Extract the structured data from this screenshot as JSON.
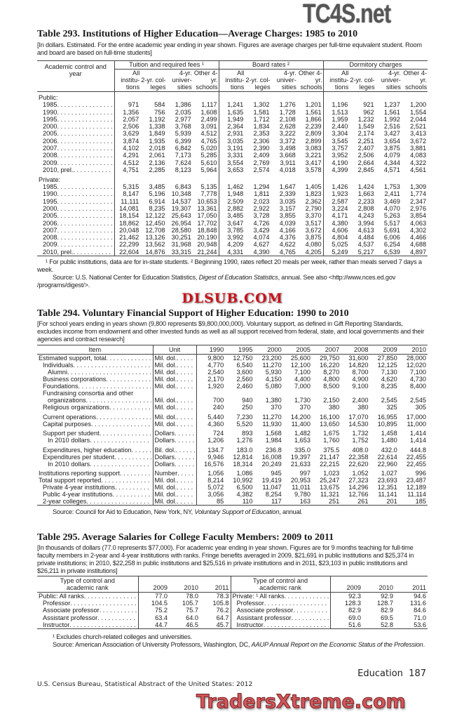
{
  "watermarks": {
    "top": "TC4S.net",
    "middle": "DLSUB.COM",
    "bottom": "TradersXtreme.com"
  },
  "t293": {
    "title": "Table 293. Institutions of Higher Education—Average Charges: 1985 to 2010",
    "headnote": "[In dollars. Estimated. For the entire academic year ending in year shown. Figures are average charges per full-time equivalent student. Room and board are based on full-time students]",
    "stub_header": "Academic control and year",
    "groups": [
      "Tuition and required fees ¹",
      "Board rates ²",
      "Dormitory charges"
    ],
    "cols": [
      "All institu- tions",
      "2-yr. col- leges",
      "4-yr. univer- sities",
      "Other 4-yr. schools"
    ],
    "sections": [
      {
        "label": "Public:",
        "rows": [
          {
            "year": "1985",
            "v": [
              "971",
              "584",
              "1,386",
              "1,117",
              "1,241",
              "1,302",
              "1,276",
              "1,201",
              "1,196",
              "921",
              "1,237",
              "1,200"
            ]
          },
          {
            "year": "1990",
            "v": [
              "1,356",
              "756",
              "2,035",
              "1,608",
              "1,635",
              "1,581",
              "1,728",
              "1,561",
              "1,513",
              "962",
              "1,561",
              "1,554"
            ]
          },
          {
            "year": "1995",
            "v": [
              "2,057",
              "1,192",
              "2,977",
              "2,499",
              "1,949",
              "1,712",
              "2,108",
              "1,866",
              "1,959",
              "1,232",
              "1,992",
              "2,044"
            ]
          },
          {
            "year": "2000",
            "v": [
              "2,506",
              "1,338",
              "3,768",
              "3,091",
              "2,364",
              "1,834",
              "2,628",
              "2,239",
              "2,440",
              "1,549",
              "2,516",
              "2,521"
            ]
          },
          {
            "year": "2005",
            "v": [
              "3,629",
              "1,849",
              "5,939",
              "4,512",
              "2,931",
              "2,353",
              "3,222",
              "2,809",
              "3,304",
              "2,174",
              "3,427",
              "3,413"
            ]
          },
          {
            "year": "2006",
            "v": [
              "3,874",
              "1,935",
              "6,399",
              "4,765",
              "3,035",
              "2,306",
              "3,372",
              "2,899",
              "3,545",
              "2,251",
              "3,654",
              "3,672"
            ]
          },
          {
            "year": "2007",
            "v": [
              "4,102",
              "2,018",
              "6,842",
              "5,020",
              "3,191",
              "2,390",
              "3,498",
              "3,083",
              "3,757",
              "2,407",
              "3,875",
              "3,881"
            ]
          },
          {
            "year": "2008",
            "v": [
              "4,291",
              "2,061",
              "7,173",
              "5,285",
              "3,331",
              "2,409",
              "3,668",
              "3,221",
              "3,952",
              "2,506",
              "4,079",
              "4,083"
            ]
          },
          {
            "year": "2009",
            "v": [
              "4,512",
              "2,136",
              "7,624",
              "5,610",
              "3,554",
              "2,769",
              "3,911",
              "3,417",
              "4,190",
              "2,664",
              "4,344",
              "4,322"
            ]
          },
          {
            "year": "2010, prel.",
            "v": [
              "4,751",
              "2,285",
              "8,123",
              "5,964",
              "3,653",
              "2,574",
              "4,018",
              "3,578",
              "4,399",
              "2,845",
              "4,571",
              "4,561"
            ]
          }
        ]
      },
      {
        "label": "Private:",
        "rows": [
          {
            "year": "1985",
            "v": [
              "5,315",
              "3,485",
              "6,843",
              "5,135",
              "1,462",
              "1,294",
              "1,647",
              "1,405",
              "1,426",
              "1,424",
              "1,753",
              "1,309"
            ]
          },
          {
            "year": "1990",
            "v": [
              "8,147",
              "5,196",
              "10,348",
              "7,778",
              "1,948",
              "1,811",
              "2,339",
              "1,823",
              "1,923",
              "1,663",
              "2,411",
              "1,774"
            ]
          },
          {
            "year": "1995",
            "v": [
              "11,111",
              "6,914",
              "14,537",
              "10,653",
              "2,509",
              "2,023",
              "3,035",
              "2,362",
              "2,587",
              "2,233",
              "3,469",
              "2,347"
            ]
          },
          {
            "year": "2000",
            "v": [
              "14,081",
              "8,235",
              "19,307",
              "13,361",
              "2,882",
              "2,922",
              "3,157",
              "2,790",
              "3,224",
              "2,808",
              "4,070",
              "2,976"
            ]
          },
          {
            "year": "2005",
            "v": [
              "18,154",
              "12,122",
              "25,643",
              "17,050",
              "3,485",
              "3,728",
              "3,855",
              "3,370",
              "4,171",
              "4,243",
              "5,263",
              "3,854"
            ]
          },
          {
            "year": "2006",
            "v": [
              "18,862",
              "12,450",
              "26,954",
              "17,702",
              "3,647",
              "4,726",
              "4,039",
              "3,517",
              "4,380",
              "3,994",
              "5,517",
              "4,063"
            ]
          },
          {
            "year": "2007",
            "v": [
              "20,048",
              "12,708",
              "28,580",
              "18,848",
              "3,785",
              "3,429",
              "4,166",
              "3,672",
              "4,606",
              "4,613",
              "5,691",
              "4,302"
            ]
          },
          {
            "year": "2008",
            "v": [
              "21,462",
              "13,126",
              "30,251",
              "20,190",
              "3,992",
              "4,074",
              "4,376",
              "3,875",
              "4,804",
              "4,484",
              "6,006",
              "4,466"
            ]
          },
          {
            "year": "2009",
            "v": [
              "22,299",
              "13,562",
              "31,968",
              "20,948",
              "4,209",
              "4,627",
              "4,622",
              "4,080",
              "5,025",
              "4,537",
              "6,254",
              "4,688"
            ]
          },
          {
            "year": "2010, prel.",
            "v": [
              "22,604",
              "14,876",
              "33,315",
              "21,244",
              "4,331",
              "4,390",
              "4,765",
              "4,205",
              "5,249",
              "5,217",
              "6,539",
              "4,897"
            ]
          }
        ]
      }
    ],
    "footnote": "¹ For public institutions, data are for in-state students. ² Beginning 1990, rates reflect 20 meals per week, rather than meals served 7 days a week.",
    "source_a": "Source: U.S. National Center for Education Statistics, ",
    "source_i": "Digest of Education Statistics",
    "source_b": ", annual. See also <http://www.nces.ed.gov /programs/digest/>."
  },
  "t294": {
    "title": "Table 294. Voluntary Financial Support of Higher Education: 1990 to 2010",
    "headnote": "[For school years ending in years shown (9,800 represents $9,800,000,000). Voluntary support, as defined in Gift Reporting Standards, excludes income from endowment and other invested funds as well as all support received from federal, state, and local governments and their agencies and contract research]",
    "headers": {
      "item": "Item",
      "unit": "Unit",
      "years": [
        "1990",
        "1995",
        "2000",
        "2005",
        "2007",
        "2008",
        "2009",
        "2010"
      ]
    },
    "groups": [
      [
        {
          "item": "Estimated support, total",
          "indent": 0,
          "unit": "Mil. dol.",
          "v": [
            "9,800",
            "12,750",
            "23,200",
            "25,600",
            "29,750",
            "31,600",
            "27,850",
            "28,000"
          ]
        },
        {
          "item": "Individuals",
          "indent": 1,
          "unit": "Mil. dol.",
          "v": [
            "4,770",
            "6,540",
            "11,270",
            "12,100",
            "16,220",
            "14,820",
            "12,125",
            "12,020"
          ]
        },
        {
          "item": "Alumni",
          "indent": 2,
          "unit": "Mil. dol.",
          "v": [
            "2,540",
            "3,600",
            "5,930",
            "7,100",
            "8,270",
            "8,700",
            "7,130",
            "7,100"
          ]
        },
        {
          "item": "Business corporations",
          "indent": 1,
          "unit": "Mil. dol.",
          "v": [
            "2,170",
            "2,560",
            "4,150",
            "4,400",
            "4,800",
            "4,900",
            "4,620",
            "4,730"
          ]
        },
        {
          "item": "Foundations",
          "indent": 1,
          "unit": "Mil. dol.",
          "v": [
            "1,920",
            "2,460",
            "5,080",
            "7,000",
            "8,500",
            "9,100",
            "8,235",
            "8,400"
          ]
        },
        {
          "item_pre": "Fundraising consortia and other",
          "item": "organizations",
          "indent": 2,
          "unit": "Mil. dol.",
          "v": [
            "700",
            "940",
            "1,380",
            "1,730",
            "2,150",
            "2,400",
            "2,545",
            "2,545"
          ]
        },
        {
          "item": "Religious organizations",
          "indent": 1,
          "unit": "Mil. dol.",
          "v": [
            "240",
            "250",
            "370",
            "370",
            "380",
            "380",
            "325",
            "305"
          ]
        }
      ],
      [
        {
          "item": "Current operations",
          "indent": 1,
          "unit": "Mil. dol.",
          "v": [
            "5,440",
            "7,230",
            "11,270",
            "14,200",
            "16,100",
            "17,070",
            "16,955",
            "17,000"
          ]
        },
        {
          "item": "Capital purposes",
          "indent": 1,
          "unit": "Mil. dol.",
          "v": [
            "4,360",
            "5,520",
            "11,930",
            "11,400",
            "13,650",
            "14,530",
            "10,895",
            "11,000"
          ]
        }
      ],
      [
        {
          "item": "Support per student",
          "indent": 1,
          "unit": "Dollars",
          "v": [
            "724",
            "893",
            "1,568",
            "1,482",
            "1,675",
            "1,732",
            "1,458",
            "1,414"
          ]
        },
        {
          "item": "In 2010 dollars",
          "indent": 2,
          "unit": "Dollars",
          "v": [
            "1,206",
            "1,276",
            "1,984",
            "1,653",
            "1,760",
            "1,752",
            "1,480",
            "1,414"
          ]
        }
      ],
      [
        {
          "item": "Expenditures, higher education",
          "indent": 1,
          "unit": "Bil. dol.",
          "v": [
            "134.7",
            "183.0",
            "236.8",
            "335.0",
            "375.5",
            "408.0",
            "432.0",
            "444.8"
          ]
        },
        {
          "item": "Expenditures per student",
          "indent": 1,
          "unit": "Dollars",
          "v": [
            "9,946",
            "12,814",
            "16,008",
            "19,397",
            "21,147",
            "22,358",
            "22,614",
            "22,455"
          ]
        },
        {
          "item": "In 2010 dollars",
          "indent": 2,
          "unit": "Dollars",
          "v": [
            "16,576",
            "18,314",
            "20,249",
            "21,633",
            "22,215",
            "22,620",
            "22,960",
            "22,455"
          ]
        }
      ],
      [
        {
          "item": "Institutions reporting support",
          "indent": 0,
          "unit": "Number",
          "v": [
            "1,056",
            "1,086",
            "945",
            "997",
            "1,023",
            "1,052",
            "1,027",
            "996"
          ]
        },
        {
          "item": "Total support reported",
          "indent": 0,
          "unit": "Mil. dol.",
          "v": [
            "8,214",
            "10,992",
            "19,419",
            "20,953",
            "25,247",
            "27,323",
            "23,693",
            "23,487"
          ]
        },
        {
          "item": "Private 4-year institutions",
          "indent": 1,
          "unit": "Mil. dol.",
          "v": [
            "5,072",
            "6,500",
            "11,047",
            "11,011",
            "13,675",
            "14,296",
            "12,351",
            "12,189"
          ]
        },
        {
          "item": "Public 4-year institutions",
          "indent": 1,
          "unit": "Mil. dol.",
          "v": [
            "3,056",
            "4,382",
            "8,254",
            "9,780",
            "11,321",
            "12,766",
            "11,141",
            "11,114"
          ]
        },
        {
          "item": "2-year colleges",
          "indent": 1,
          "unit": "Mil. dol.",
          "v": [
            "85",
            "110",
            "117",
            "163",
            "251",
            "261",
            "201",
            "185"
          ]
        }
      ]
    ],
    "source_a": "Source: Council for Aid to Education, New York, NY, ",
    "source_i": "Voluntary Support of Education",
    "source_b": ", annual."
  },
  "t295": {
    "title": "Table 295. Average Salaries for College Faculty Members: 2009 to 2011",
    "headnote": "[In thousands of dollars (77.0 represents $77,000). For academic year ending in year shown. Figures are for 9 months teaching for full-time faculty members in 2-year and 4-year institutions with ranks. Fringe benefits averaged in 2009, $21,691 in public institutions and $25,374 in private institutions; in 2010, $22,258 in public institutions and $25,516 in private institutions and in 2011, $23,103 in public institutions and $26,211 in private institutions]",
    "stub_header": "Type of control and academic rank",
    "years": [
      "2009",
      "2010",
      "2011"
    ],
    "left": [
      {
        "item": "Public: All ranks",
        "indent": 0,
        "v": [
          "77.0",
          "78.0",
          "78.3"
        ]
      },
      {
        "item": "Professor",
        "indent": 1,
        "v": [
          "104.5",
          "105.7",
          "105.8"
        ]
      },
      {
        "item": "Associate professor",
        "indent": 1,
        "v": [
          "75.2",
          "75.7",
          "76.2"
        ]
      },
      {
        "item": "Assistant professor",
        "indent": 1,
        "v": [
          "63.4",
          "64.0",
          "64.7"
        ]
      },
      {
        "item": "Instructor",
        "indent": 1,
        "v": [
          "44.7",
          "46.5",
          "45.7"
        ]
      }
    ],
    "right": [
      {
        "item": "Private: ¹ All ranks",
        "indent": 0,
        "v": [
          "92.3",
          "92.9",
          "94.6"
        ]
      },
      {
        "item": "Professor",
        "indent": 1,
        "v": [
          "128.3",
          "128.7",
          "131.6"
        ]
      },
      {
        "item": "Associate professor",
        "indent": 1,
        "v": [
          "82.9",
          "82.9",
          "84.6"
        ]
      },
      {
        "item": "Assistant professor",
        "indent": 1,
        "v": [
          "69.0",
          "69.5",
          "71.0"
        ]
      },
      {
        "item": "Instructor",
        "indent": 1,
        "v": [
          "51.6",
          "52.8",
          "53.6"
        ]
      }
    ],
    "footnote": "¹ Excludes church-related colleges and universities.",
    "source_a": "Source: American Association of University Professors, Washington, DC, ",
    "source_i": "AAUP Annual Report on the Economic Status of the Profession",
    "source_b": "."
  },
  "footer": {
    "section": "Education",
    "page": "187",
    "publisher": "U.S. Census Bureau, Statistical Abstract of the United States: 2012"
  }
}
